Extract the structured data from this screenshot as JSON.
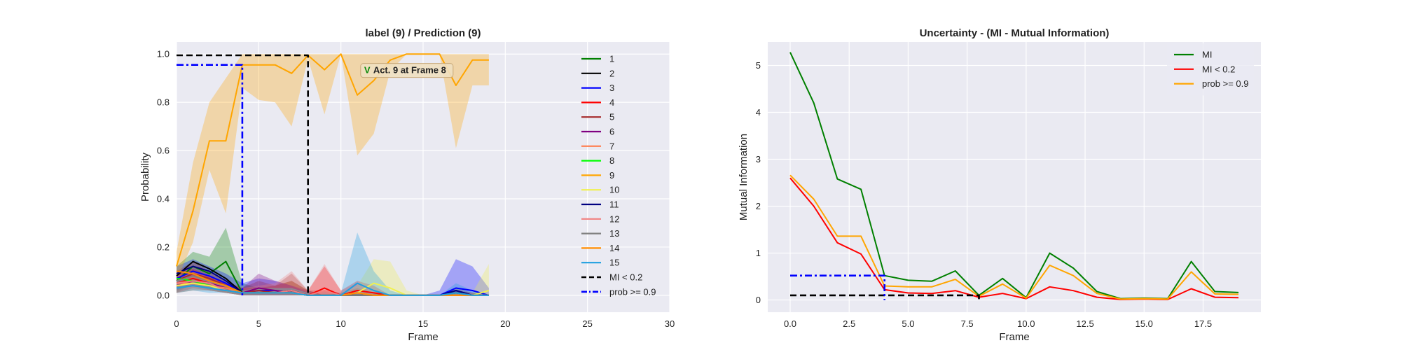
{
  "chart_data": [
    {
      "type": "line",
      "title": "label (9) / Prediction (9)",
      "xlabel": "Frame",
      "ylabel": "Probability",
      "xlim": [
        0,
        30
      ],
      "ylim": [
        -0.07,
        1.05
      ],
      "xticks": [
        0,
        5,
        10,
        15,
        20,
        25,
        30
      ],
      "xtick_labels": [
        "0",
        "5",
        "10",
        "15",
        "20",
        "25",
        "30"
      ],
      "yticks": [
        0.0,
        0.2,
        0.4,
        0.6,
        0.8,
        1.0
      ],
      "ytick_labels": [
        "0.0",
        "0.2",
        "0.4",
        "0.6",
        "0.8",
        "1.0"
      ],
      "grid": true,
      "legend_position": "right",
      "x": [
        0,
        1,
        2,
        3,
        4,
        5,
        6,
        7,
        8,
        9,
        10,
        11,
        12,
        13,
        14,
        15,
        16,
        17,
        18,
        19
      ],
      "annotation": {
        "badge": "V",
        "text": "Act. 9 at Frame 8",
        "x": 11.2,
        "y": 0.935
      },
      "series": [
        {
          "name": "1",
          "color": "#008000",
          "values": [
            0.06,
            0.12,
            0.09,
            0.14,
            0.01,
            0.01,
            0.01,
            0.02,
            0.0,
            0.0,
            0.0,
            0.0,
            0.0,
            0.0,
            0.0,
            0.0,
            0.0,
            0.01,
            0.0,
            0.0
          ],
          "upper": [
            0.12,
            0.18,
            0.16,
            0.28,
            0.05,
            0.03,
            0.04,
            0.06,
            0.02,
            0,
            0,
            0,
            0,
            0,
            0,
            0,
            0,
            0.02,
            0.01,
            0
          ],
          "lower": [
            0.01,
            0.05,
            0.02,
            0.01,
            0,
            0,
            0,
            0,
            0,
            0,
            0,
            0,
            0,
            0,
            0,
            0,
            0,
            0,
            0,
            0
          ]
        },
        {
          "name": "2",
          "color": "#000000",
          "values": [
            0.08,
            0.14,
            0.11,
            0.07,
            0.01,
            0.01,
            0.01,
            0.02,
            0.0,
            0.0,
            0.0,
            0.0,
            0.0,
            0.0,
            0.0,
            0.0,
            0.0,
            0.02,
            0.0,
            0.0
          ]
        },
        {
          "name": "3",
          "color": "#0000ff",
          "values": [
            0.07,
            0.1,
            0.08,
            0.05,
            0.01,
            0.02,
            0.02,
            0.01,
            0.0,
            0.0,
            0.0,
            0.0,
            0.0,
            0.0,
            0.0,
            0.0,
            0.0,
            0.03,
            0.02,
            0.0
          ],
          "upper": [
            0.12,
            0.15,
            0.12,
            0.09,
            0.05,
            0.07,
            0.06,
            0.04,
            0.01,
            0,
            0,
            0,
            0,
            0,
            0,
            0,
            0.02,
            0.15,
            0.12,
            0.03
          ],
          "lower": [
            0.02,
            0.05,
            0.04,
            0.02,
            0,
            0,
            0,
            0,
            0,
            0,
            0,
            0,
            0,
            0,
            0,
            0,
            0,
            0,
            0,
            0
          ]
        },
        {
          "name": "4",
          "color": "#ff0000",
          "values": [
            0.05,
            0.07,
            0.05,
            0.03,
            0.01,
            0.01,
            0.01,
            0.02,
            0.0,
            0.03,
            0.0,
            0.02,
            0.01,
            0.0,
            0.0,
            0.0,
            0.0,
            0.0,
            0.0,
            0.0
          ],
          "upper": [
            0.09,
            0.11,
            0.08,
            0.05,
            0.03,
            0.03,
            0.04,
            0.06,
            0.02,
            0.12,
            0.02,
            0.06,
            0.04,
            0,
            0,
            0,
            0,
            0.01,
            0.01,
            0
          ],
          "lower": [
            0.01,
            0.03,
            0.02,
            0.01,
            0,
            0,
            0,
            0,
            0,
            0,
            0,
            0,
            0,
            0,
            0,
            0,
            0,
            0,
            0,
            0
          ]
        },
        {
          "name": "5",
          "color": "#a52a2a",
          "values": [
            0.06,
            0.09,
            0.07,
            0.04,
            0.01,
            0.02,
            0.01,
            0.02,
            0.0,
            0.0,
            0.0,
            0.01,
            0.0,
            0.0,
            0.0,
            0.0,
            0.0,
            0.01,
            0.0,
            0.0
          ],
          "upper": [
            0.1,
            0.14,
            0.1,
            0.06,
            0.03,
            0.06,
            0.04,
            0.09,
            0.02,
            0.02,
            0.01,
            0.03,
            0.01,
            0,
            0,
            0,
            0,
            0.03,
            0.01,
            0
          ],
          "lower": [
            0.02,
            0.04,
            0.03,
            0.01,
            0,
            0,
            0,
            0,
            0,
            0,
            0,
            0,
            0,
            0,
            0,
            0,
            0,
            0,
            0,
            0
          ]
        },
        {
          "name": "6",
          "color": "#800080",
          "values": [
            0.04,
            0.06,
            0.05,
            0.03,
            0.01,
            0.03,
            0.02,
            0.01,
            0.0,
            0.0,
            0.0,
            0.0,
            0.0,
            0.0,
            0.0,
            0.0,
            0.0,
            0.0,
            0.0,
            0.0
          ],
          "upper": [
            0.07,
            0.09,
            0.08,
            0.05,
            0.03,
            0.09,
            0.06,
            0.04,
            0.02,
            0,
            0,
            0,
            0,
            0,
            0,
            0,
            0,
            0.02,
            0.01,
            0
          ],
          "lower": [
            0.01,
            0.02,
            0.02,
            0.01,
            0,
            0,
            0,
            0,
            0,
            0,
            0,
            0,
            0,
            0,
            0,
            0,
            0,
            0,
            0,
            0
          ]
        },
        {
          "name": "7",
          "color": "#ff7f50",
          "values": [
            0.05,
            0.05,
            0.04,
            0.03,
            0.01,
            0.01,
            0.01,
            0.01,
            0.0,
            0.0,
            0.0,
            0.0,
            0.0,
            0.0,
            0.0,
            0.0,
            0.0,
            0.0,
            0.0,
            0.0
          ]
        },
        {
          "name": "8",
          "color": "#00ff00",
          "values": [
            0.07,
            0.06,
            0.04,
            0.02,
            0.01,
            0.01,
            0.01,
            0.01,
            0.0,
            0.0,
            0.0,
            0.0,
            0.0,
            0.0,
            0.0,
            0.0,
            0.0,
            0.0,
            0.0,
            0.0
          ]
        },
        {
          "name": "9",
          "color": "#ffa500",
          "values": [
            0.12,
            0.35,
            0.64,
            0.64,
            0.955,
            0.955,
            0.955,
            0.92,
            0.995,
            0.935,
            1.0,
            0.83,
            0.89,
            0.975,
            1.0,
            1.0,
            1.0,
            0.87,
            0.975,
            0.975
          ],
          "upper": [
            0.18,
            0.55,
            0.8,
            0.9,
            1.0,
            1.0,
            1.0,
            1.0,
            1.0,
            1.0,
            1.0,
            1.0,
            1.0,
            1.0,
            1.0,
            1.0,
            1.0,
            1.0,
            1.0,
            1.0
          ],
          "lower": [
            0.06,
            0.22,
            0.52,
            0.34,
            0.86,
            0.81,
            0.8,
            0.7,
            0.98,
            0.75,
            1.0,
            0.58,
            0.67,
            0.93,
            1.0,
            1.0,
            1.0,
            0.61,
            0.87,
            0.87
          ]
        },
        {
          "name": "10",
          "color": "#f0f050",
          "values": [
            0.04,
            0.05,
            0.04,
            0.02,
            0.01,
            0.01,
            0.01,
            0.01,
            0.0,
            0.0,
            0.0,
            0.01,
            0.05,
            0.03,
            0.0,
            0.0,
            0.0,
            0.0,
            0.0,
            0.02
          ],
          "upper": [
            0.07,
            0.08,
            0.06,
            0.04,
            0.02,
            0.03,
            0.03,
            0.03,
            0.01,
            0,
            0,
            0.04,
            0.15,
            0.14,
            0.02,
            0,
            0,
            0.01,
            0.01,
            0.13
          ],
          "lower": [
            0.01,
            0.02,
            0.02,
            0.01,
            0,
            0,
            0,
            0,
            0,
            0,
            0,
            0,
            0,
            0,
            0,
            0,
            0,
            0,
            0,
            0
          ]
        },
        {
          "name": "11",
          "color": "#000080",
          "values": [
            0.09,
            0.12,
            0.1,
            0.06,
            0.01,
            0.01,
            0.01,
            0.02,
            0.0,
            0.0,
            0.0,
            0.0,
            0.0,
            0.0,
            0.0,
            0.0,
            0.0,
            0.02,
            0.0,
            0.0
          ]
        },
        {
          "name": "12",
          "color": "#f08080",
          "values": [
            0.05,
            0.06,
            0.05,
            0.02,
            0.01,
            0.01,
            0.01,
            0.02,
            0.0,
            0.02,
            0.0,
            0.01,
            0.0,
            0.0,
            0.0,
            0.0,
            0.0,
            0.0,
            0.0,
            0.0
          ],
          "upper": [
            0.08,
            0.1,
            0.08,
            0.04,
            0.03,
            0.04,
            0.05,
            0.1,
            0.02,
            0.13,
            0.02,
            0.05,
            0.02,
            0,
            0,
            0,
            0,
            0.01,
            0.01,
            0
          ],
          "lower": [
            0.01,
            0.03,
            0.02,
            0.01,
            0,
            0,
            0,
            0,
            0,
            0,
            0,
            0,
            0,
            0,
            0,
            0,
            0,
            0,
            0,
            0
          ]
        },
        {
          "name": "13",
          "color": "#808080",
          "values": [
            0.06,
            0.08,
            0.06,
            0.04,
            0.01,
            0.01,
            0.01,
            0.01,
            0.0,
            0.0,
            0.0,
            0.0,
            0.0,
            0.0,
            0.0,
            0.0,
            0.0,
            0.01,
            0.0,
            0.0
          ]
        },
        {
          "name": "14",
          "color": "#ff8c00",
          "values": [
            0.1,
            0.09,
            0.06,
            0.04,
            0.01,
            0.01,
            0.01,
            0.01,
            0.0,
            0.0,
            0.0,
            0.01,
            0.0,
            0.0,
            0.0,
            0.0,
            0.0,
            0.0,
            0.0,
            0.0
          ]
        },
        {
          "name": "15",
          "color": "#1e9fe0",
          "values": [
            0.03,
            0.04,
            0.03,
            0.02,
            0.01,
            0.01,
            0.01,
            0.01,
            0.0,
            0.0,
            0.0,
            0.05,
            0.02,
            0.0,
            0.0,
            0.0,
            0.0,
            0.01,
            0.0,
            0.0
          ],
          "upper": [
            0.06,
            0.07,
            0.06,
            0.04,
            0.02,
            0.03,
            0.03,
            0.03,
            0.01,
            0,
            0.01,
            0.26,
            0.1,
            0.02,
            0,
            0,
            0,
            0.05,
            0.02,
            0
          ],
          "lower": [
            0.01,
            0.02,
            0.01,
            0.01,
            0,
            0,
            0,
            0,
            0,
            0,
            0,
            0,
            0,
            0,
            0,
            0,
            0,
            0,
            0,
            0
          ]
        },
        {
          "name": "MI < 0.2",
          "color": "#000000",
          "dash": "dashed",
          "points": [
            [
              0,
              0.995
            ],
            [
              8,
              0.995
            ],
            [
              8,
              0
            ]
          ]
        },
        {
          "name": "prob >= 0.9",
          "color": "#0000ff",
          "dash": "dashdot",
          "points": [
            [
              0,
              0.955
            ],
            [
              4,
              0.955
            ],
            [
              4,
              0
            ]
          ]
        }
      ]
    },
    {
      "type": "line",
      "title": "Uncertainty - (MI - Mutual Information)",
      "xlabel": "Frame",
      "ylabel": "Mutual Information",
      "xlim": [
        -0.95,
        19.95
      ],
      "ylim": [
        -0.26,
        5.5
      ],
      "xticks": [
        0,
        2.5,
        5,
        7.5,
        10,
        12.5,
        15,
        17.5
      ],
      "xtick_labels": [
        "0.0",
        "2.5",
        "5.0",
        "7.5",
        "10.0",
        "12.5",
        "15.0",
        "17.5"
      ],
      "yticks": [
        0,
        1,
        2,
        3,
        4,
        5
      ],
      "ytick_labels": [
        "0",
        "1",
        "2",
        "3",
        "4",
        "5"
      ],
      "grid": true,
      "legend_position": "upper right",
      "x": [
        0,
        1,
        2,
        3,
        4,
        5,
        6,
        7,
        8,
        9,
        10,
        11,
        12,
        13,
        14,
        15,
        16,
        17,
        18,
        19
      ],
      "series": [
        {
          "name": "MI",
          "color": "#008000",
          "values": [
            5.28,
            4.2,
            2.58,
            2.36,
            0.52,
            0.42,
            0.4,
            0.62,
            0.1,
            0.46,
            0.05,
            1.0,
            0.68,
            0.18,
            0.03,
            0.04,
            0.03,
            0.82,
            0.18,
            0.16
          ]
        },
        {
          "name": "MI < 0.2",
          "color": "#ff0000",
          "values": [
            2.6,
            2.0,
            1.22,
            0.98,
            0.22,
            0.15,
            0.14,
            0.2,
            0.06,
            0.14,
            0.03,
            0.28,
            0.2,
            0.06,
            0.01,
            0.02,
            0.01,
            0.24,
            0.06,
            0.05
          ]
        },
        {
          "name": "prob >= 0.9",
          "color": "#ffa500",
          "values": [
            2.66,
            2.15,
            1.36,
            1.36,
            0.3,
            0.28,
            0.28,
            0.44,
            0.08,
            0.34,
            0.04,
            0.74,
            0.52,
            0.14,
            0.02,
            0.03,
            0.02,
            0.6,
            0.13,
            0.12
          ]
        },
        {
          "name": "MI < 0.2",
          "color": "#000000",
          "dash": "dashed",
          "legend": false,
          "points": [
            [
              0,
              0.1
            ],
            [
              8,
              0.1
            ],
            [
              8,
              0
            ]
          ]
        },
        {
          "name": "prob >= 0.9",
          "color": "#0000ff",
          "dash": "dashdot",
          "legend": false,
          "points": [
            [
              0,
              0.52
            ],
            [
              4,
              0.52
            ],
            [
              4,
              0
            ]
          ]
        }
      ]
    }
  ]
}
